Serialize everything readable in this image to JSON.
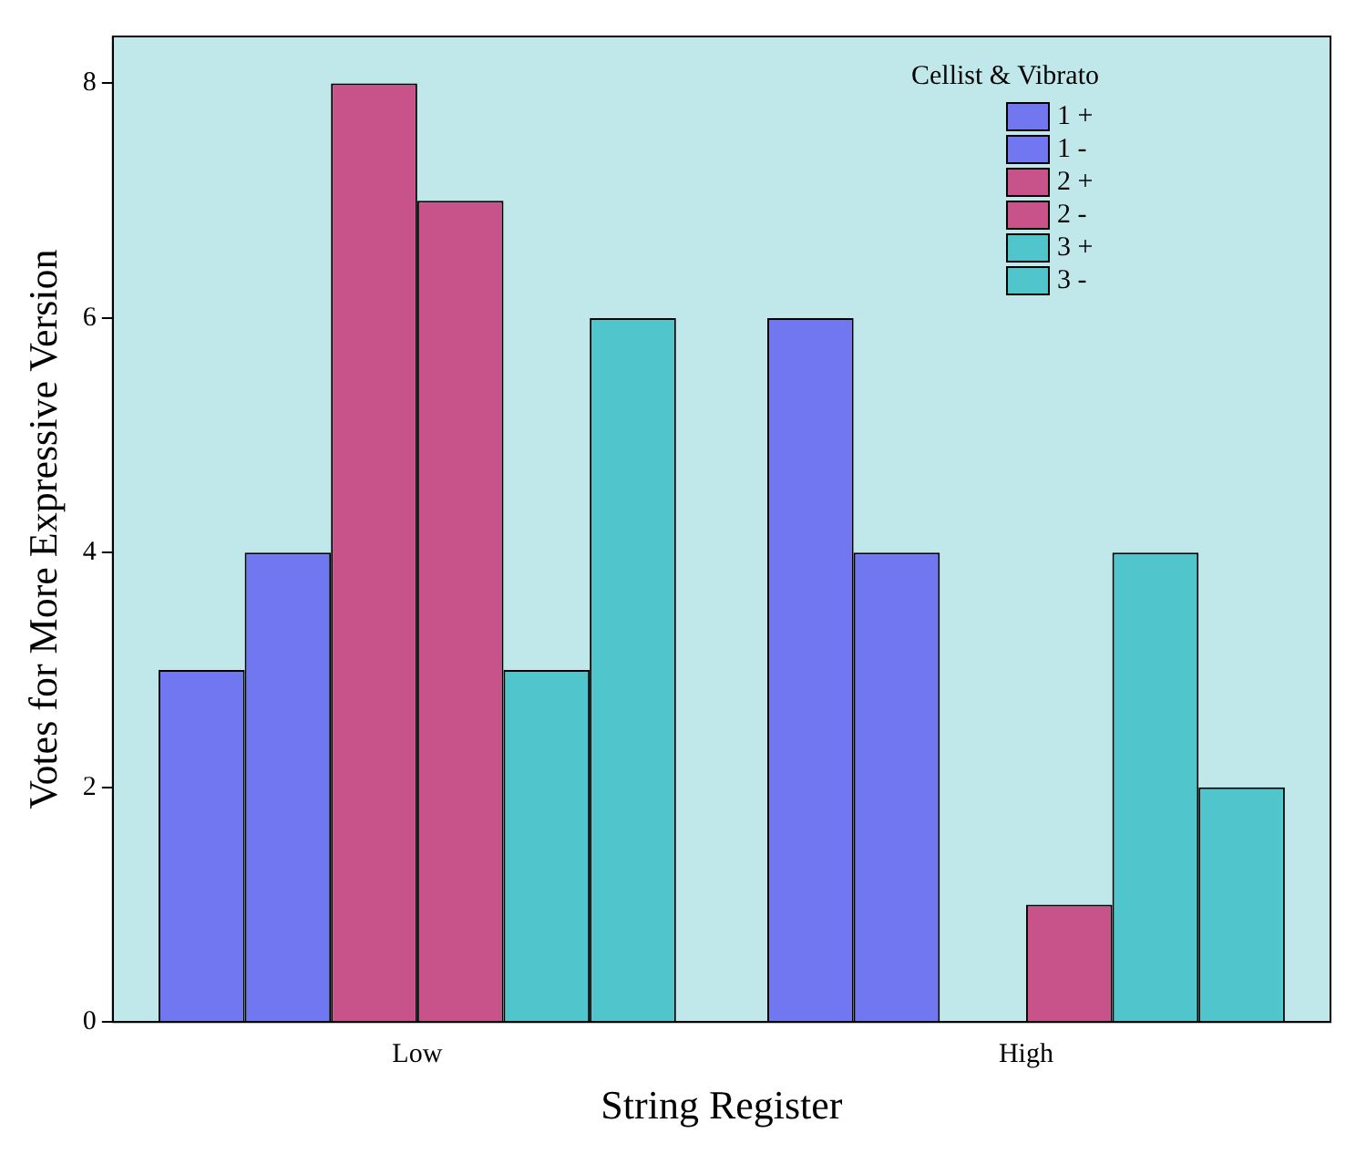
{
  "chart_data": {
    "type": "bar",
    "xlabel": "String Register",
    "ylabel": "Votes for More Expressive Version",
    "legend_title": "Cellist & Vibrato",
    "categories": [
      "Low",
      "High"
    ],
    "series": [
      {
        "name": "1 +",
        "color": "#7077f0",
        "values": [
          3,
          6
        ]
      },
      {
        "name": "1 -",
        "color": "#7077f0",
        "values": [
          4,
          4
        ]
      },
      {
        "name": "2 +",
        "color": "#c8528a",
        "values": [
          8,
          0
        ]
      },
      {
        "name": "2 -",
        "color": "#c8528a",
        "values": [
          7,
          1
        ]
      },
      {
        "name": "3 +",
        "color": "#50c6cc",
        "values": [
          3,
          4
        ]
      },
      {
        "name": "3 -",
        "color": "#50c6cc",
        "values": [
          6,
          2
        ]
      }
    ],
    "ylim": [
      0,
      8.4
    ],
    "yticks": [
      0,
      2,
      4,
      6,
      8
    ],
    "grid": false,
    "legend": "top right"
  }
}
